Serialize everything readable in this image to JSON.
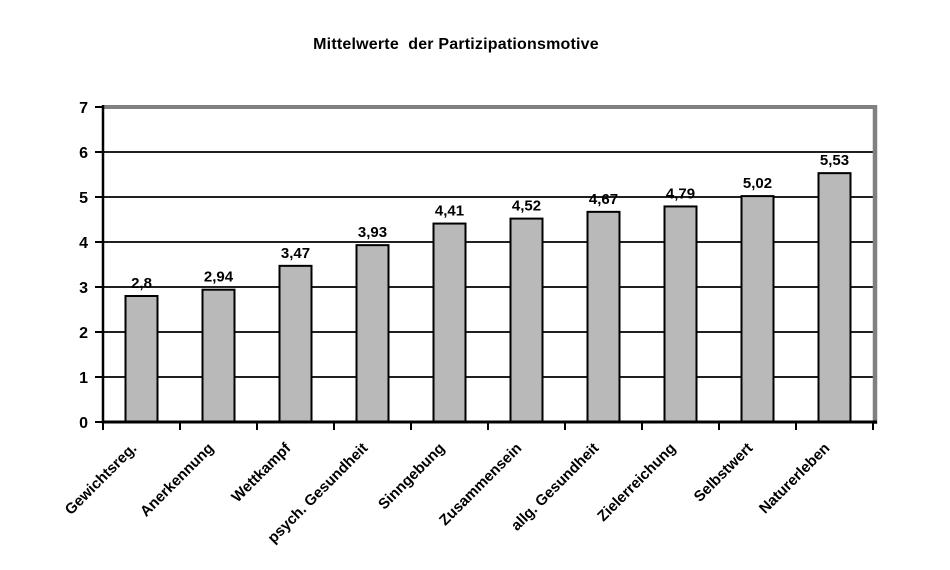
{
  "page": {
    "background": "#FFFFFF"
  },
  "chart_data": {
    "type": "bar",
    "title": "Mittelwerte  der Partizipationsmotive",
    "categories": [
      "Gewichtsreg.",
      "Anerkennung",
      "Wettkampf",
      "psych. Gesundheit",
      "Sinngebung",
      "Zusammensein",
      "allg. Gesundheit",
      "Zielerreichung",
      "Selbstwert",
      "Naturerleben"
    ],
    "values": [
      2.8,
      2.94,
      3.47,
      3.93,
      4.41,
      4.52,
      4.67,
      4.79,
      5.02,
      5.53
    ],
    "value_labels": [
      "2,8",
      "2,94",
      "3,47",
      "3,93",
      "4,41",
      "4,52",
      "4,67",
      "4,79",
      "5,02",
      "5,53"
    ],
    "xlabel": "",
    "ylabel": "",
    "ylim": [
      0,
      7
    ],
    "yticks": [
      0,
      1,
      2,
      3,
      4,
      5,
      6,
      7
    ],
    "grid": true,
    "legend_position": "none",
    "colors": {
      "bar_fill": "#B9B9B9",
      "bar_border": "#000000",
      "gridline": "#000000",
      "plot_border_gray": "#808080",
      "axis": "#000000",
      "text": "#000000",
      "background": "#FFFFFF"
    }
  }
}
